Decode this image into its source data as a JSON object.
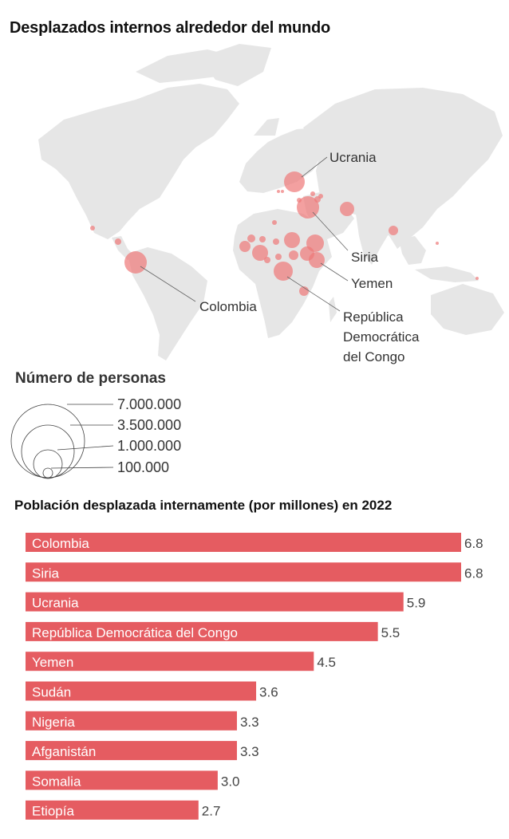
{
  "map": {
    "title": "Desplazados internos alrededor del mundo",
    "labels": {
      "ukraine": "Ucrania",
      "syria": "Siria",
      "yemen": "Yemen",
      "colombia": "Colombia",
      "drc_line1": "República",
      "drc_line2": "Democrática",
      "drc_line3": "del Congo"
    },
    "bubble_color": "#ee7777"
  },
  "legend": {
    "title": "Número de personas",
    "entries": [
      "7.000.000",
      "3.500.000",
      "1.000.000",
      "100.000"
    ]
  },
  "chart_data": {
    "type": "bar",
    "title": "Población desplazada internamente (por millones) en 2022",
    "categories": [
      "Colombia",
      "Siria",
      "Ucrania",
      "República Democrática del Congo",
      "Yemen",
      "Sudán",
      "Nigeria",
      "Afganistán",
      "Somalia",
      "Etiopía"
    ],
    "values": [
      6.8,
      6.8,
      5.9,
      5.5,
      4.5,
      3.6,
      3.3,
      3.3,
      3.0,
      2.7
    ],
    "value_labels": [
      "6.8",
      "6.8",
      "5.9",
      "5.5",
      "4.5",
      "3.6",
      "3.3",
      "3.3",
      "3.0",
      "2.7"
    ],
    "orientation": "horizontal",
    "bar_color": "#e55c61"
  }
}
